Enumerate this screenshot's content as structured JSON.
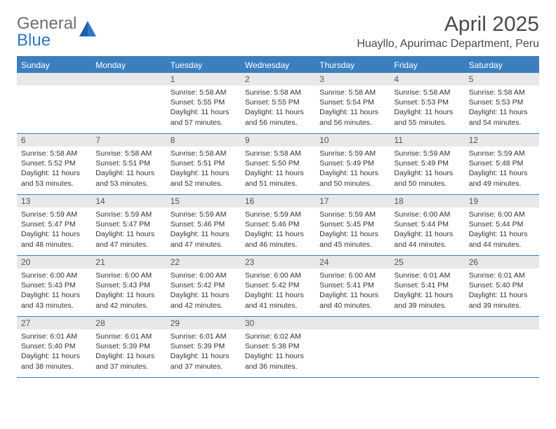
{
  "brand": {
    "word1": "General",
    "word2": "Blue"
  },
  "title": "April 2025",
  "location": "Huayllo, Apurimac Department, Peru",
  "colors": {
    "header_blue": "#3b7fbf",
    "daynum_bg": "#e8e8e8",
    "text": "#333333",
    "title_text": "#4a4a4a",
    "logo_gray": "#6f6f6f",
    "logo_blue": "#2f78bf",
    "background": "#ffffff"
  },
  "weekdays": [
    "Sunday",
    "Monday",
    "Tuesday",
    "Wednesday",
    "Thursday",
    "Friday",
    "Saturday"
  ],
  "weeks": [
    [
      {
        "blank": true
      },
      {
        "blank": true
      },
      {
        "day": "1",
        "sunrise": "Sunrise: 5:58 AM",
        "sunset": "Sunset: 5:55 PM",
        "daylight": "Daylight: 11 hours and 57 minutes."
      },
      {
        "day": "2",
        "sunrise": "Sunrise: 5:58 AM",
        "sunset": "Sunset: 5:55 PM",
        "daylight": "Daylight: 11 hours and 56 minutes."
      },
      {
        "day": "3",
        "sunrise": "Sunrise: 5:58 AM",
        "sunset": "Sunset: 5:54 PM",
        "daylight": "Daylight: 11 hours and 56 minutes."
      },
      {
        "day": "4",
        "sunrise": "Sunrise: 5:58 AM",
        "sunset": "Sunset: 5:53 PM",
        "daylight": "Daylight: 11 hours and 55 minutes."
      },
      {
        "day": "5",
        "sunrise": "Sunrise: 5:58 AM",
        "sunset": "Sunset: 5:53 PM",
        "daylight": "Daylight: 11 hours and 54 minutes."
      }
    ],
    [
      {
        "day": "6",
        "sunrise": "Sunrise: 5:58 AM",
        "sunset": "Sunset: 5:52 PM",
        "daylight": "Daylight: 11 hours and 53 minutes."
      },
      {
        "day": "7",
        "sunrise": "Sunrise: 5:58 AM",
        "sunset": "Sunset: 5:51 PM",
        "daylight": "Daylight: 11 hours and 53 minutes."
      },
      {
        "day": "8",
        "sunrise": "Sunrise: 5:58 AM",
        "sunset": "Sunset: 5:51 PM",
        "daylight": "Daylight: 11 hours and 52 minutes."
      },
      {
        "day": "9",
        "sunrise": "Sunrise: 5:58 AM",
        "sunset": "Sunset: 5:50 PM",
        "daylight": "Daylight: 11 hours and 51 minutes."
      },
      {
        "day": "10",
        "sunrise": "Sunrise: 5:59 AM",
        "sunset": "Sunset: 5:49 PM",
        "daylight": "Daylight: 11 hours and 50 minutes."
      },
      {
        "day": "11",
        "sunrise": "Sunrise: 5:59 AM",
        "sunset": "Sunset: 5:49 PM",
        "daylight": "Daylight: 11 hours and 50 minutes."
      },
      {
        "day": "12",
        "sunrise": "Sunrise: 5:59 AM",
        "sunset": "Sunset: 5:48 PM",
        "daylight": "Daylight: 11 hours and 49 minutes."
      }
    ],
    [
      {
        "day": "13",
        "sunrise": "Sunrise: 5:59 AM",
        "sunset": "Sunset: 5:47 PM",
        "daylight": "Daylight: 11 hours and 48 minutes."
      },
      {
        "day": "14",
        "sunrise": "Sunrise: 5:59 AM",
        "sunset": "Sunset: 5:47 PM",
        "daylight": "Daylight: 11 hours and 47 minutes."
      },
      {
        "day": "15",
        "sunrise": "Sunrise: 5:59 AM",
        "sunset": "Sunset: 5:46 PM",
        "daylight": "Daylight: 11 hours and 47 minutes."
      },
      {
        "day": "16",
        "sunrise": "Sunrise: 5:59 AM",
        "sunset": "Sunset: 5:46 PM",
        "daylight": "Daylight: 11 hours and 46 minutes."
      },
      {
        "day": "17",
        "sunrise": "Sunrise: 5:59 AM",
        "sunset": "Sunset: 5:45 PM",
        "daylight": "Daylight: 11 hours and 45 minutes."
      },
      {
        "day": "18",
        "sunrise": "Sunrise: 6:00 AM",
        "sunset": "Sunset: 5:44 PM",
        "daylight": "Daylight: 11 hours and 44 minutes."
      },
      {
        "day": "19",
        "sunrise": "Sunrise: 6:00 AM",
        "sunset": "Sunset: 5:44 PM",
        "daylight": "Daylight: 11 hours and 44 minutes."
      }
    ],
    [
      {
        "day": "20",
        "sunrise": "Sunrise: 6:00 AM",
        "sunset": "Sunset: 5:43 PM",
        "daylight": "Daylight: 11 hours and 43 minutes."
      },
      {
        "day": "21",
        "sunrise": "Sunrise: 6:00 AM",
        "sunset": "Sunset: 5:43 PM",
        "daylight": "Daylight: 11 hours and 42 minutes."
      },
      {
        "day": "22",
        "sunrise": "Sunrise: 6:00 AM",
        "sunset": "Sunset: 5:42 PM",
        "daylight": "Daylight: 11 hours and 42 minutes."
      },
      {
        "day": "23",
        "sunrise": "Sunrise: 6:00 AM",
        "sunset": "Sunset: 5:42 PM",
        "daylight": "Daylight: 11 hours and 41 minutes."
      },
      {
        "day": "24",
        "sunrise": "Sunrise: 6:00 AM",
        "sunset": "Sunset: 5:41 PM",
        "daylight": "Daylight: 11 hours and 40 minutes."
      },
      {
        "day": "25",
        "sunrise": "Sunrise: 6:01 AM",
        "sunset": "Sunset: 5:41 PM",
        "daylight": "Daylight: 11 hours and 39 minutes."
      },
      {
        "day": "26",
        "sunrise": "Sunrise: 6:01 AM",
        "sunset": "Sunset: 5:40 PM",
        "daylight": "Daylight: 11 hours and 39 minutes."
      }
    ],
    [
      {
        "day": "27",
        "sunrise": "Sunrise: 6:01 AM",
        "sunset": "Sunset: 5:40 PM",
        "daylight": "Daylight: 11 hours and 38 minutes."
      },
      {
        "day": "28",
        "sunrise": "Sunrise: 6:01 AM",
        "sunset": "Sunset: 5:39 PM",
        "daylight": "Daylight: 11 hours and 37 minutes."
      },
      {
        "day": "29",
        "sunrise": "Sunrise: 6:01 AM",
        "sunset": "Sunset: 5:39 PM",
        "daylight": "Daylight: 11 hours and 37 minutes."
      },
      {
        "day": "30",
        "sunrise": "Sunrise: 6:02 AM",
        "sunset": "Sunset: 5:38 PM",
        "daylight": "Daylight: 11 hours and 36 minutes."
      },
      {
        "blank": true
      },
      {
        "blank": true
      },
      {
        "blank": true
      }
    ]
  ]
}
